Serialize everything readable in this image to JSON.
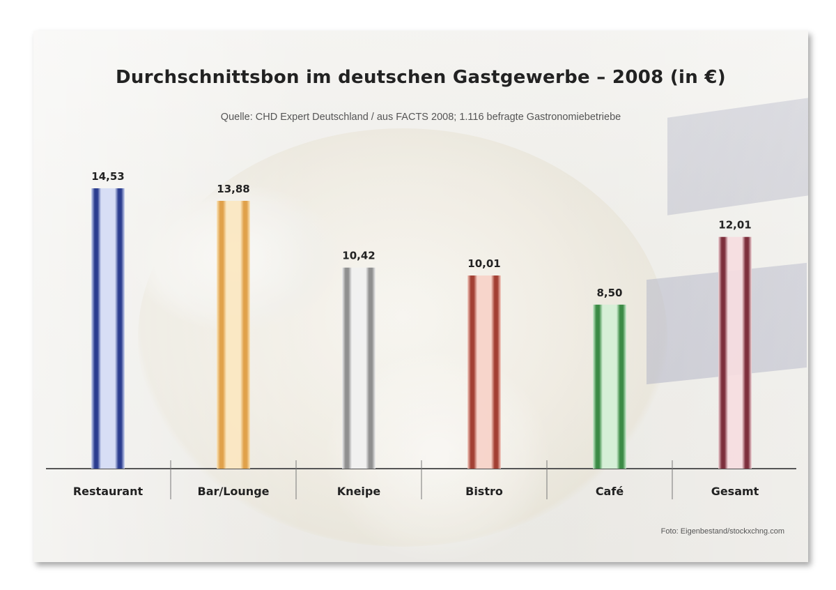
{
  "chart_data": {
    "type": "bar",
    "title": "Durchschnittsbon im deutschen Gastgewerbe – 2008 (in €)",
    "subtitle": "Quelle: CHD Expert Deutschland / aus FACTS 2008; 1.116 befragte Gastronomiebetriebe",
    "categories": [
      "Restaurant",
      "Bar/Lounge",
      "Kneipe",
      "Bistro",
      "Café",
      "Gesamt"
    ],
    "values": [
      14.53,
      13.88,
      10.42,
      10.01,
      8.5,
      12.01
    ],
    "data_labels": [
      "14,53",
      "13,88",
      "10,42",
      "10,01",
      "8,50",
      "12,01"
    ],
    "ylim": [
      0,
      16
    ],
    "grid": false,
    "legend": "none",
    "source_note": "Foto: Eigenbestand/stockxchng.com"
  },
  "colors": {
    "series": [
      "#2b3d8f",
      "#e0a14a",
      "#8f8f8f",
      "#a23f33",
      "#3b8a45",
      "#7d2f3c"
    ],
    "light": [
      "#d4dcf5",
      "#fbe7c0",
      "#f1f1f1",
      "#f7d2c8",
      "#d4f0d6",
      "#f6dde0"
    ]
  }
}
